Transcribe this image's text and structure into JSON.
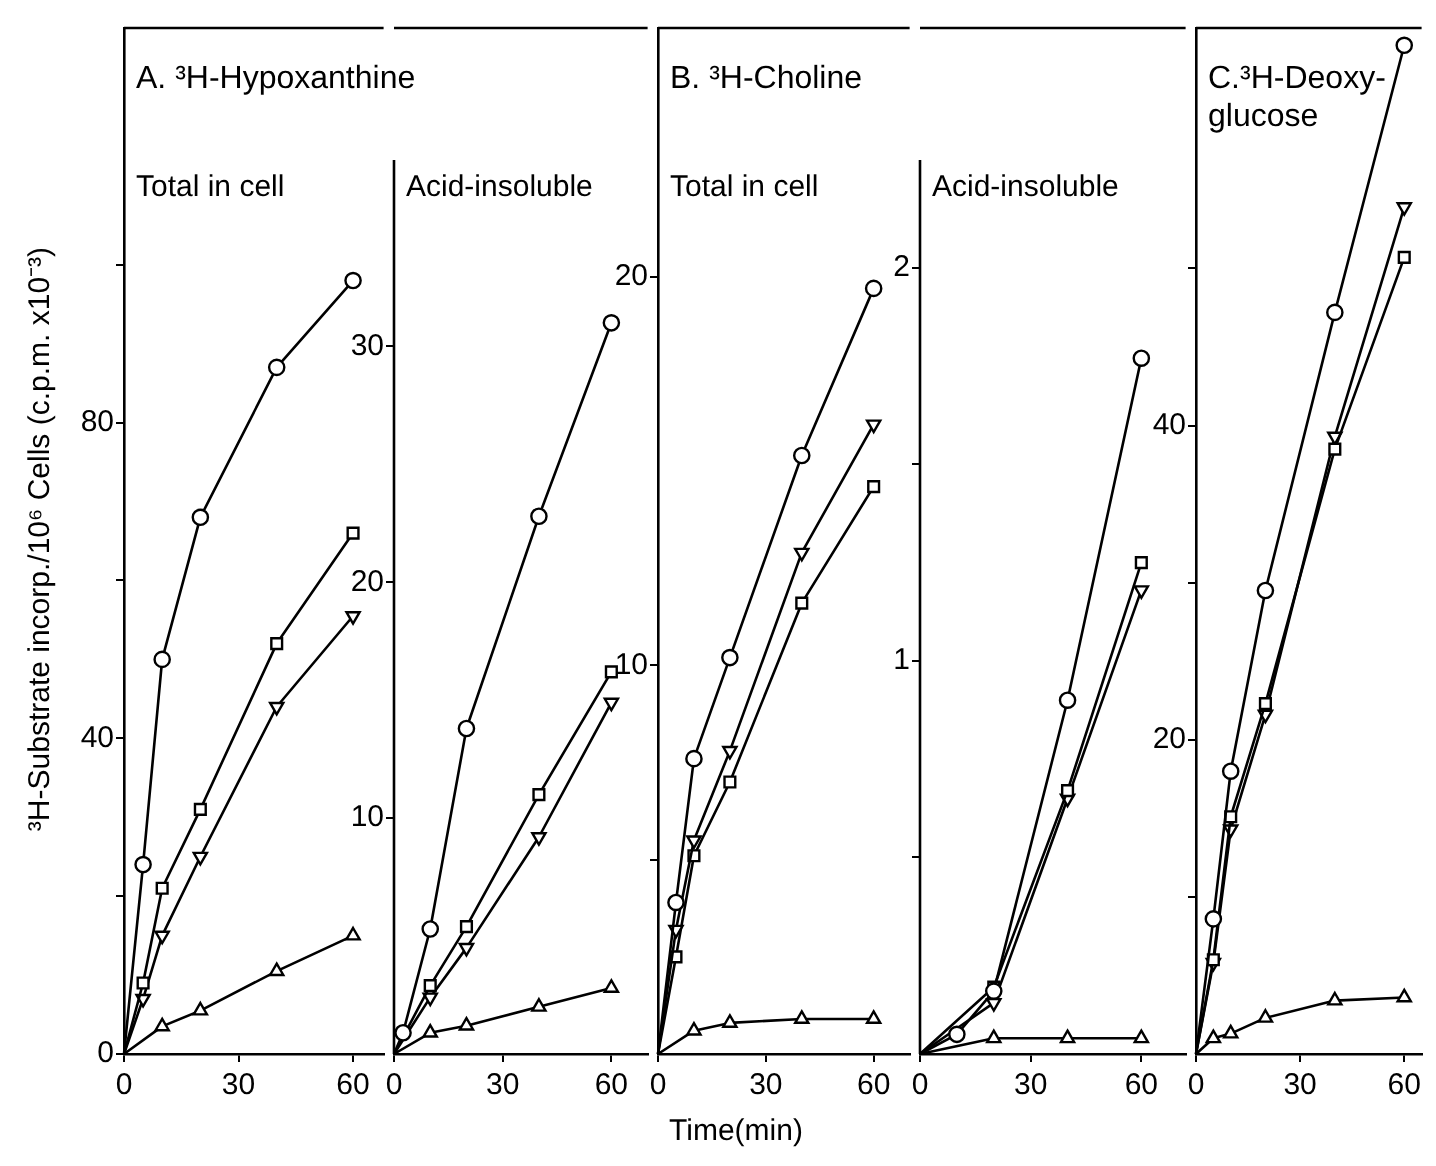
{
  "chart_data": [
    {
      "type": "line",
      "title": "A. ³H-Hypoxanthine",
      "subtitle": "Total in cell",
      "ylabel": "³H-Substrate incorp./10⁶ Cells (c.p.m. x10⁻³)",
      "xlim": [
        0,
        68
      ],
      "xticks": [
        0,
        30,
        60
      ],
      "ylim": [
        0,
        130
      ],
      "yticks": [
        0,
        {
          "value": 20,
          "label": null
        },
        40,
        {
          "value": 60,
          "label": null
        },
        80,
        {
          "value": 100,
          "label": null
        }
      ],
      "grid": false,
      "legend": false,
      "line_style": "solid",
      "series": [
        {
          "color": "#000000",
          "marker": "circle",
          "x": [
            0,
            5,
            10,
            20,
            40,
            60
          ],
          "values": [
            0,
            24,
            50,
            68,
            87,
            98
          ]
        },
        {
          "color": "#000000",
          "marker": "square",
          "x": [
            0,
            5,
            10,
            20,
            40,
            60
          ],
          "values": [
            0,
            9,
            21,
            31,
            52,
            66
          ]
        },
        {
          "color": "#000000",
          "marker": "triangle-down",
          "x": [
            0,
            5,
            10,
            20,
            40,
            60
          ],
          "values": [
            0,
            7,
            15,
            25,
            44,
            55.5
          ]
        },
        {
          "color": "#000000",
          "marker": "triangle",
          "x": [
            0,
            10,
            20,
            40,
            60
          ],
          "values": [
            0,
            3.5,
            5.5,
            10.5,
            15
          ]
        }
      ]
    },
    {
      "type": "line",
      "subtitle": "Acid-insoluble",
      "xlim": [
        0,
        70
      ],
      "xticks": [
        0,
        30,
        60
      ],
      "ylim": [
        0,
        43.5
      ],
      "yticks": [
        10,
        20,
        30
      ],
      "grid": false,
      "legend": false,
      "line_style": "solid",
      "series": [
        {
          "color": "#000000",
          "marker": "circle",
          "x": [
            0,
            2.5,
            10,
            20,
            40,
            60
          ],
          "values": [
            0,
            0.9,
            5.3,
            13.8,
            22.8,
            31
          ]
        },
        {
          "color": "#000000",
          "marker": "square",
          "x": [
            0,
            10,
            20,
            40,
            60
          ],
          "values": [
            0,
            2.9,
            5.4,
            11,
            16.2
          ]
        },
        {
          "color": "#000000",
          "marker": "triangle-down",
          "x": [
            0,
            10,
            20,
            40,
            60
          ],
          "values": [
            0,
            2.4,
            4.5,
            9.2,
            14.9
          ]
        },
        {
          "color": "#000000",
          "marker": "triangle",
          "x": [
            0,
            10,
            20,
            40,
            60
          ],
          "values": [
            0,
            0.9,
            1.2,
            2,
            2.8
          ]
        }
      ]
    },
    {
      "type": "line",
      "title": "B. ³H-Choline",
      "subtitle": "Total in cell",
      "xlabel": "Time(min)",
      "xlim": [
        0,
        70
      ],
      "xticks": [
        0,
        30,
        60
      ],
      "ylim": [
        0,
        26.4
      ],
      "yticks": [
        {
          "value": 5,
          "label": null
        },
        10,
        20
      ],
      "grid": false,
      "legend": false,
      "line_style": "solid",
      "series": [
        {
          "color": "#000000",
          "marker": "circle",
          "x": [
            0,
            5,
            10,
            20,
            40,
            60
          ],
          "values": [
            0,
            3.9,
            7.6,
            10.2,
            15.4,
            19.7
          ]
        },
        {
          "color": "#000000",
          "marker": "triangle-down",
          "x": [
            0,
            5,
            10,
            20,
            40,
            60
          ],
          "values": [
            0,
            3.2,
            5.5,
            7.8,
            12.9,
            16.2
          ]
        },
        {
          "color": "#000000",
          "marker": "square",
          "x": [
            0,
            5,
            10,
            20,
            40,
            60
          ],
          "values": [
            0,
            2.5,
            5.1,
            7,
            11.6,
            14.6
          ]
        },
        {
          "color": "#000000",
          "marker": "triangle",
          "x": [
            0,
            10,
            20,
            40,
            60
          ],
          "values": [
            0,
            0.6,
            0.8,
            0.9,
            0.9
          ]
        }
      ]
    },
    {
      "type": "line",
      "subtitle": "Acid-insoluble",
      "xlim": [
        0,
        72
      ],
      "xticks": [
        0,
        30,
        60
      ],
      "ylim": [
        0,
        2.61
      ],
      "yticks": [
        {
          "value": 0.5,
          "label": null
        },
        1,
        {
          "value": 1.5,
          "label": null
        },
        2
      ],
      "grid": false,
      "legend": false,
      "line_style": "solid",
      "series": [
        {
          "color": "#000000",
          "marker": "circle",
          "x": [
            0,
            10,
            20,
            40,
            60
          ],
          "values": [
            0,
            0.05,
            0.16,
            0.9,
            1.77
          ]
        },
        {
          "color": "#000000",
          "marker": "square",
          "x": [
            0,
            20,
            40,
            60
          ],
          "values": [
            0,
            0.17,
            0.67,
            1.25
          ]
        },
        {
          "color": "#000000",
          "marker": "triangle-down",
          "x": [
            0,
            20,
            40,
            60
          ],
          "values": [
            0,
            0.13,
            0.65,
            1.18
          ]
        },
        {
          "color": "#000000",
          "marker": "triangle",
          "x": [
            0,
            20,
            40,
            60
          ],
          "values": [
            0,
            0.04,
            0.04,
            0.04
          ]
        }
      ]
    },
    {
      "type": "line",
      "title": "C.³H-Deoxy-glucose",
      "xlim": [
        0,
        65
      ],
      "xticks": [
        0,
        30,
        60
      ],
      "ylim": [
        0,
        65.3
      ],
      "yticks": [
        {
          "value": 10,
          "label": null
        },
        20,
        {
          "value": 30,
          "label": null
        },
        40,
        {
          "value": 50,
          "label": null
        }
      ],
      "grid": false,
      "legend": false,
      "line_style": "solid",
      "series": [
        {
          "color": "#000000",
          "marker": "circle",
          "x": [
            0,
            5,
            10,
            20,
            40,
            60
          ],
          "values": [
            0,
            8.6,
            18,
            29.5,
            47.2,
            64.2
          ]
        },
        {
          "color": "#000000",
          "marker": "square",
          "x": [
            0,
            5,
            10,
            20,
            40,
            60
          ],
          "values": [
            0,
            6,
            15.1,
            22.3,
            38.5,
            50.7
          ]
        },
        {
          "color": "#000000",
          "marker": "triangle-down",
          "x": [
            0,
            5,
            10,
            20,
            40,
            60
          ],
          "values": [
            0,
            5.8,
            14.3,
            21.6,
            39.3,
            53.9
          ]
        },
        {
          "color": "#000000",
          "marker": "triangle",
          "x": [
            0,
            5,
            10,
            20,
            40,
            60
          ],
          "values": [
            0,
            1,
            1.3,
            2.3,
            3.4,
            3.6
          ]
        }
      ]
    }
  ]
}
